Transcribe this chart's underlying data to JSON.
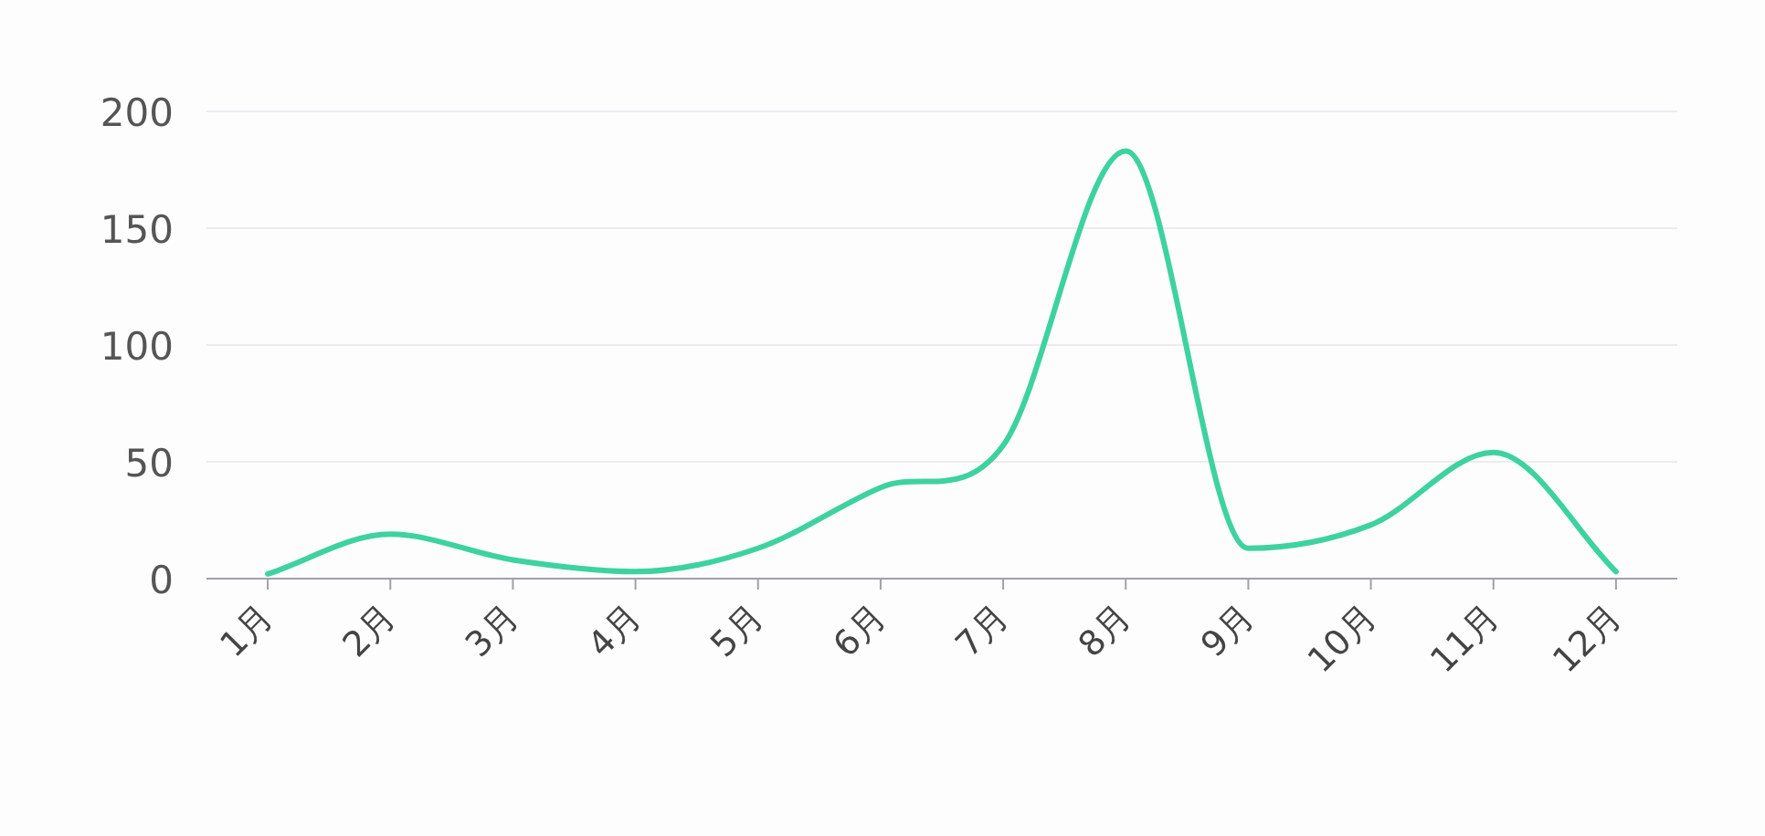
{
  "chart_data": {
    "type": "line",
    "categories": [
      "1月",
      "2月",
      "3月",
      "4月",
      "5月",
      "6月",
      "7月",
      "8月",
      "9月",
      "10月",
      "11月",
      "12月"
    ],
    "series": [
      {
        "color": "#3dd29f",
        "values": [
          2,
          19,
          8,
          3,
          13,
          39,
          57,
          183,
          13,
          23,
          54,
          3
        ]
      }
    ],
    "ylim": [
      0,
      200
    ],
    "yticks": [
      0,
      50,
      100,
      150,
      200
    ],
    "grid": "y",
    "marker": "none",
    "line_style": "solid"
  }
}
